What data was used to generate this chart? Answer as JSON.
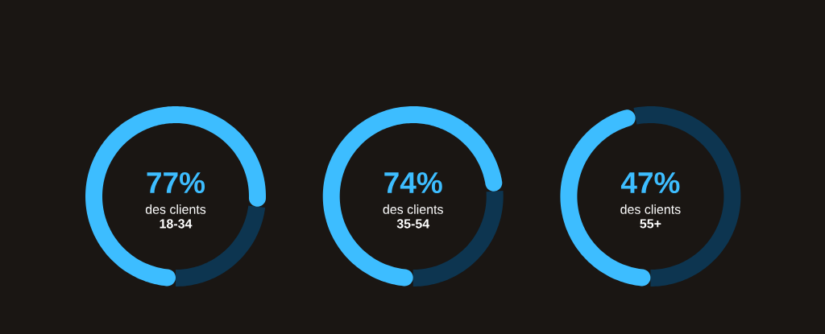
{
  "chart_data": [
    {
      "type": "donut",
      "categories": [
        null,
        null
      ],
      "values": [
        77,
        23
      ],
      "colors": [
        "#3dbdff",
        "#0d3550"
      ],
      "value_labels": [
        "77%",
        null
      ],
      "annotations": [
        "des clients",
        "18-34"
      ]
    },
    {
      "type": "donut",
      "categories": [
        null,
        null
      ],
      "values": [
        74,
        26
      ],
      "colors": [
        "#3dbdff",
        "#0d3550"
      ],
      "value_labels": [
        "74%",
        null
      ],
      "annotations": [
        "des clients",
        "35-54"
      ]
    },
    {
      "type": "donut",
      "categories": [
        null,
        null
      ],
      "values": [
        47,
        53
      ],
      "colors": [
        "#3dbdff",
        "#0d3550"
      ],
      "value_labels": [
        "47%",
        null
      ],
      "annotations": [
        "des clients",
        "55+"
      ]
    }
  ]
}
